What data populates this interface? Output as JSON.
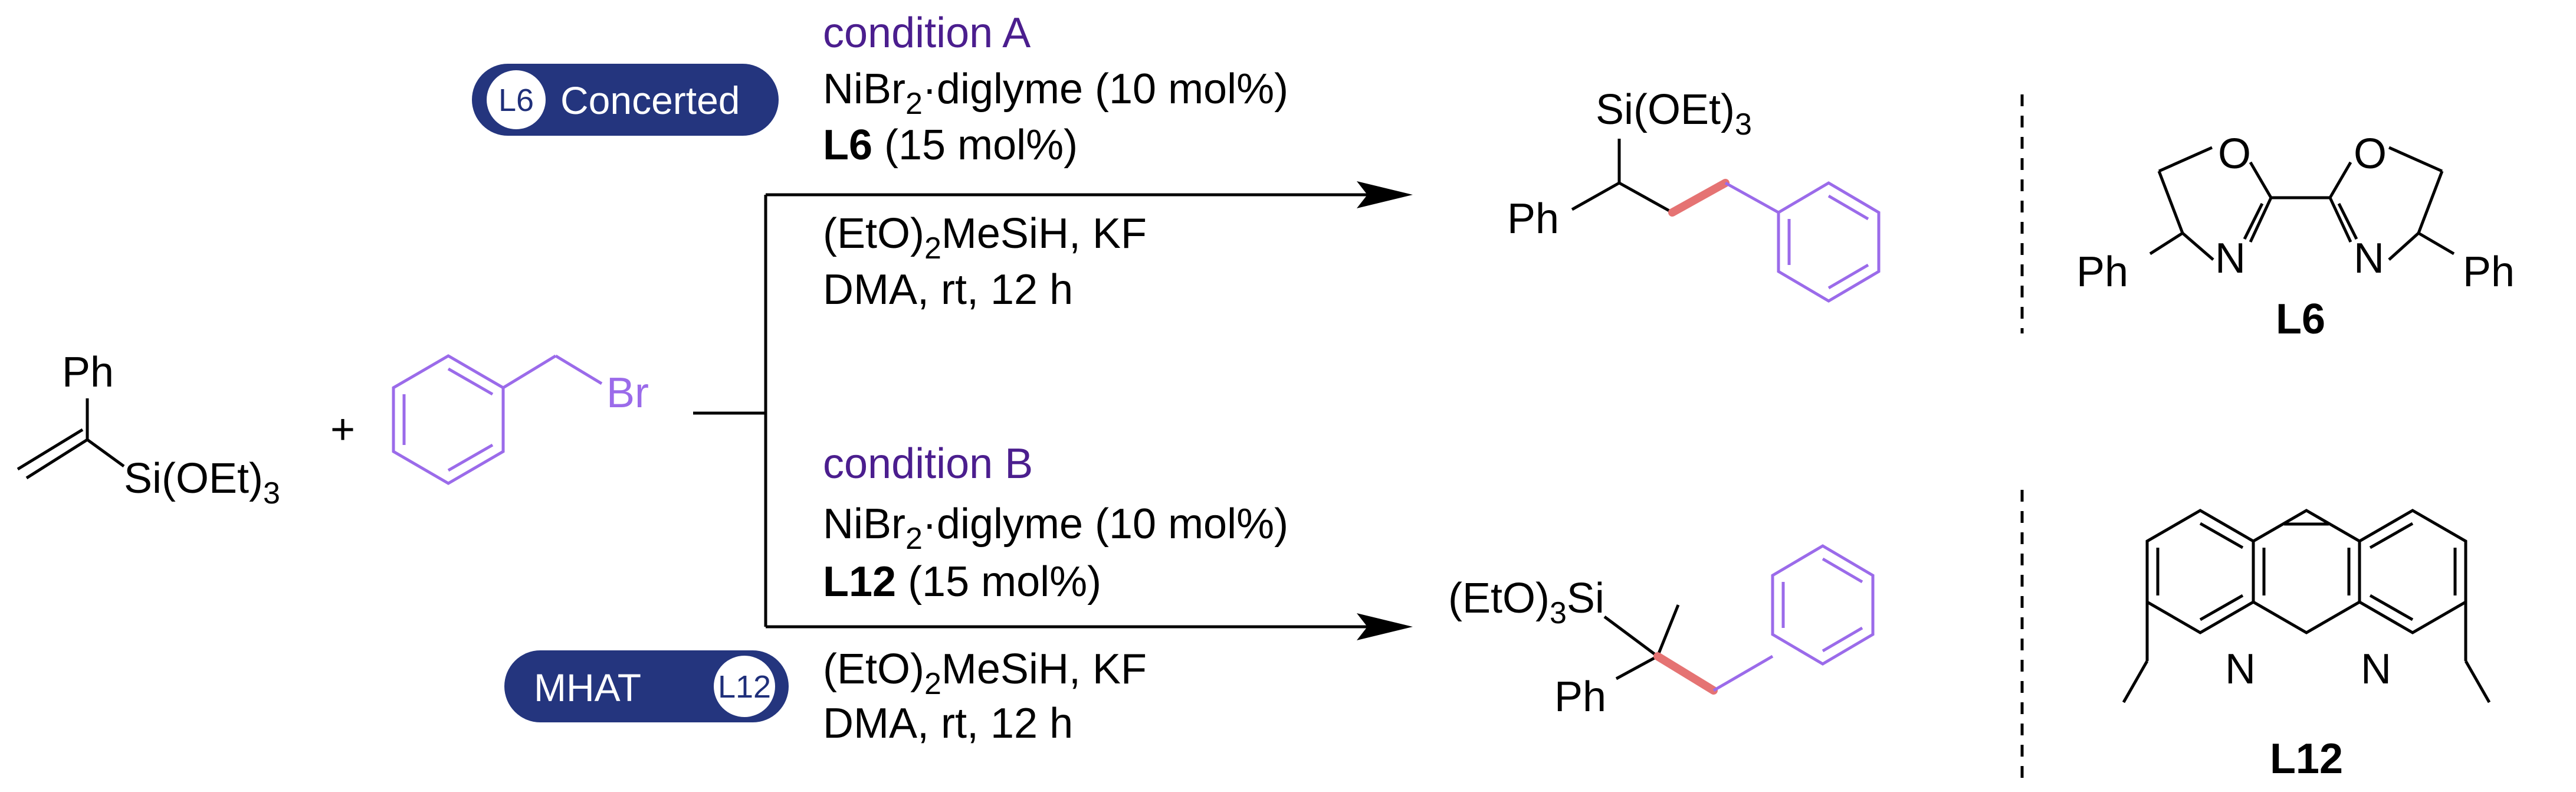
{
  "conditions": {
    "a": {
      "title": "condition A",
      "catalyst_pre": "NiBr",
      "catalyst_sub": "2",
      "catalyst_post": "·diglyme (10 mol%)",
      "ligand": "L6",
      "ligand_amount": " (15 mol%)",
      "silane_pre": "(EtO)",
      "silane_sub": "2",
      "silane_post": "MeSiH, KF",
      "solvent": "DMA, rt, 12 h"
    },
    "b": {
      "title": "condition B",
      "catalyst_pre": "NiBr",
      "catalyst_sub": "2",
      "catalyst_post": "·diglyme (10 mol%)",
      "ligand": "L12",
      "ligand_amount": " (15 mol%)",
      "silane_pre": "(EtO)",
      "silane_sub": "2",
      "silane_post": "MeSiH, KF",
      "solvent": "DMA, rt, 12 h"
    }
  },
  "badges": {
    "top": {
      "circle": "L6",
      "label": "Concerted"
    },
    "bottom": {
      "label": "MHAT",
      "circle": "L12"
    }
  },
  "reactants": {
    "vinylsilane_ph": "Ph",
    "vinylsilane_si": "Si(OEt)",
    "vinylsilane_sub": "3",
    "plus": "+",
    "benzyl_br": "Br"
  },
  "products": {
    "linear_si": "Si(OEt)",
    "linear_si_sub": "3",
    "linear_ph": "Ph",
    "branched_si_pre": "(EtO)",
    "branched_si_sub": "3",
    "branched_si_post": "Si",
    "branched_ph": "Ph"
  },
  "ligands": {
    "l6": {
      "o1": "O",
      "o2": "O",
      "n1": "N",
      "n2": "N",
      "ph1": "Ph",
      "ph2": "Ph",
      "label": "L6"
    },
    "l12": {
      "n1": "N",
      "n2": "N",
      "label": "L12"
    }
  },
  "colors": {
    "condition_title": "#4B1E8E",
    "benzyl_highlight": "#9B6BEA",
    "new_bond": "#E57373",
    "badge_fill": "#24357E"
  }
}
